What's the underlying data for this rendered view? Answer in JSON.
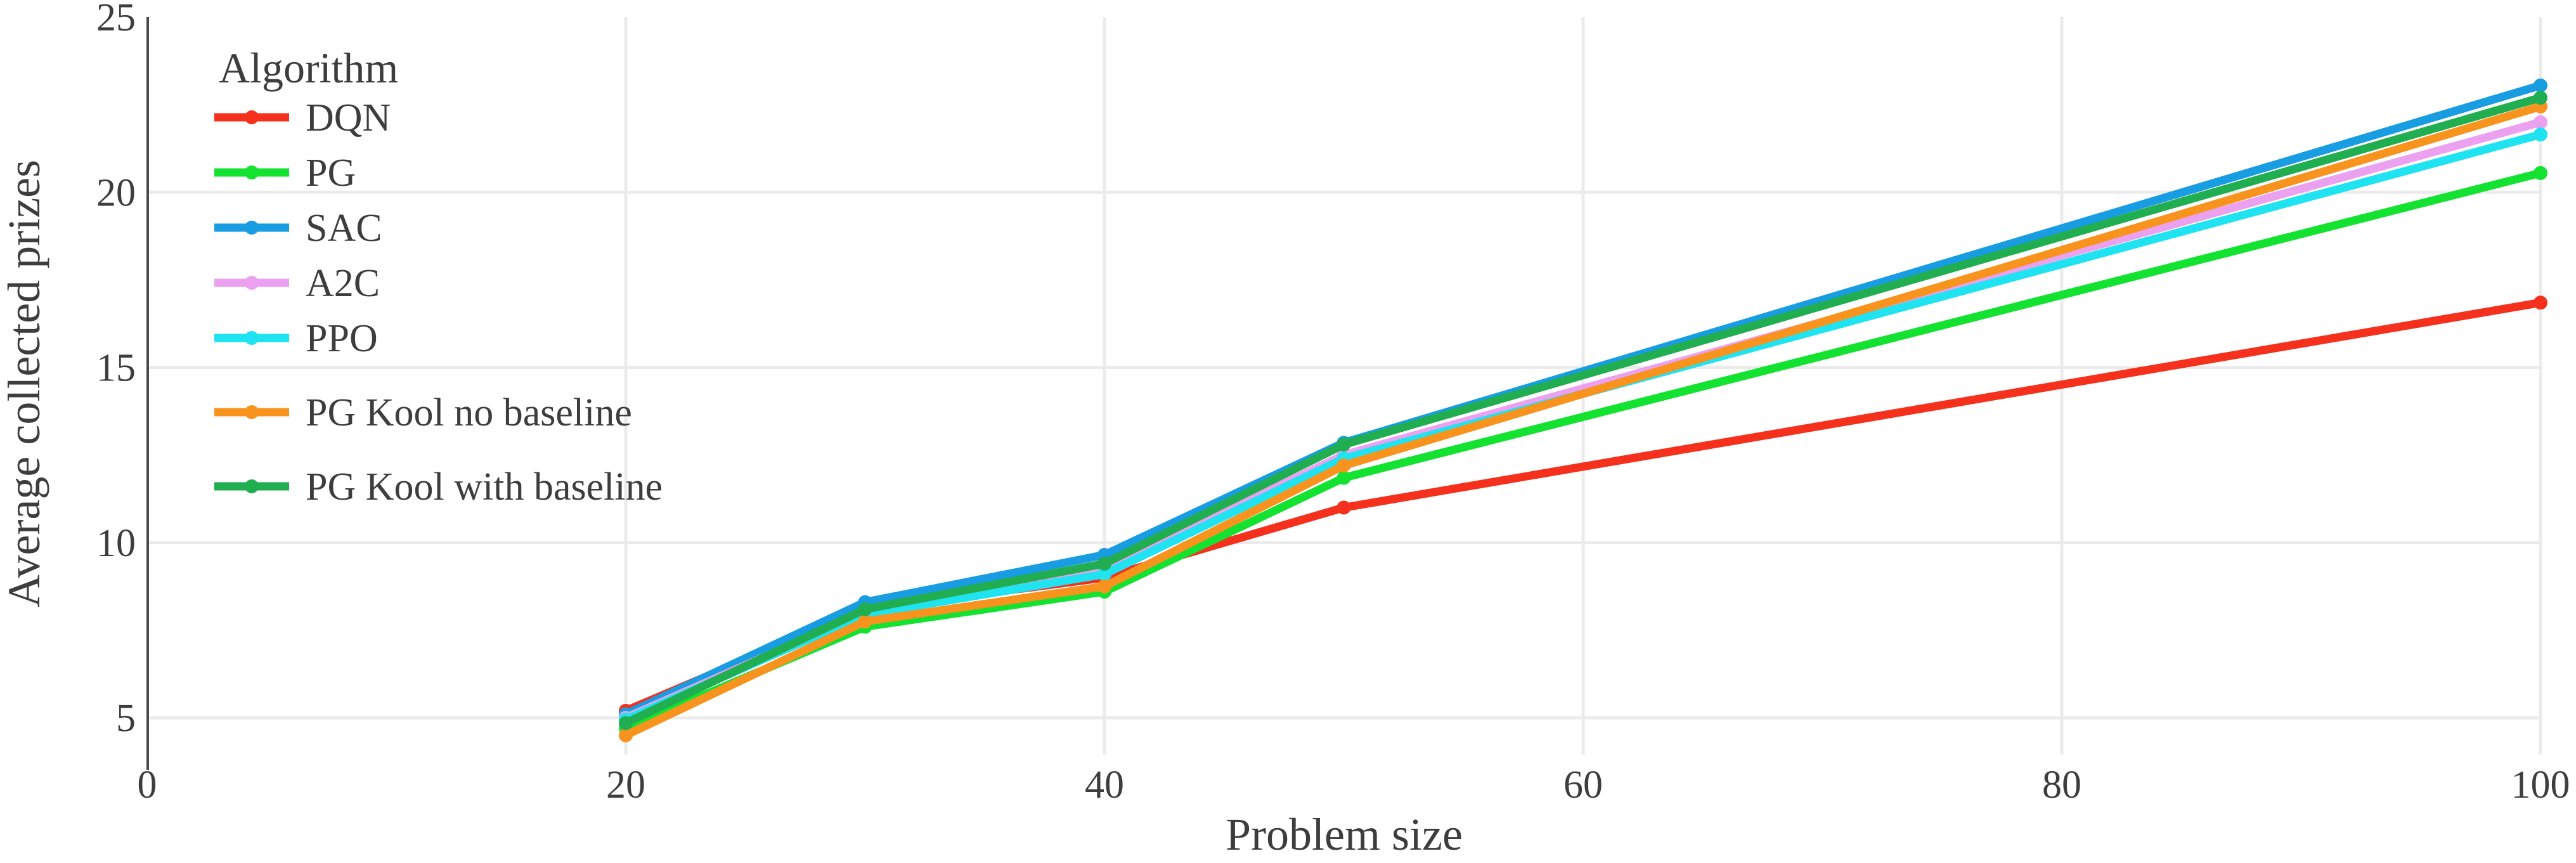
{
  "chart_data": {
    "type": "line",
    "title": "",
    "xlabel": "Problem size",
    "ylabel": "Average collected prizes",
    "legend_title": "Algorithm",
    "legend_position": "top-left",
    "grid": true,
    "x": [
      20,
      30,
      40,
      50,
      100
    ],
    "x_ticks": [
      0,
      20,
      40,
      60,
      80,
      100
    ],
    "y_ticks": [
      5,
      10,
      15,
      20,
      25
    ],
    "xlim": [
      0,
      101.5
    ],
    "ylim": [
      3.9,
      25
    ],
    "series": [
      {
        "name": "DQN",
        "color": "#F5301D",
        "values": [
          5.2,
          8.1,
          9.0,
          11.0,
          16.85
        ]
      },
      {
        "name": "PG",
        "color": "#13E231",
        "values": [
          4.7,
          7.6,
          8.6,
          11.85,
          20.55
        ]
      },
      {
        "name": "SAC",
        "color": "#189CE2",
        "values": [
          5.1,
          8.3,
          9.65,
          12.85,
          23.05
        ]
      },
      {
        "name": "A2C",
        "color": "#EBA0F0",
        "values": [
          5.0,
          8.0,
          9.25,
          12.5,
          22.0
        ]
      },
      {
        "name": "PPO",
        "color": "#1FE3F0",
        "values": [
          4.95,
          7.95,
          9.1,
          12.4,
          21.65
        ]
      },
      {
        "name": "PG Kool no baseline",
        "color": "#F8931D",
        "values": [
          4.5,
          7.75,
          8.75,
          12.2,
          22.45
        ]
      },
      {
        "name": "PG Kool with baseline",
        "color": "#21AE50",
        "values": [
          4.85,
          8.1,
          9.4,
          12.8,
          22.7
        ]
      }
    ],
    "axis_color": "#4A4A4A",
    "grid_color": "#EBEBEB",
    "text_color": "#3D3D3D"
  }
}
